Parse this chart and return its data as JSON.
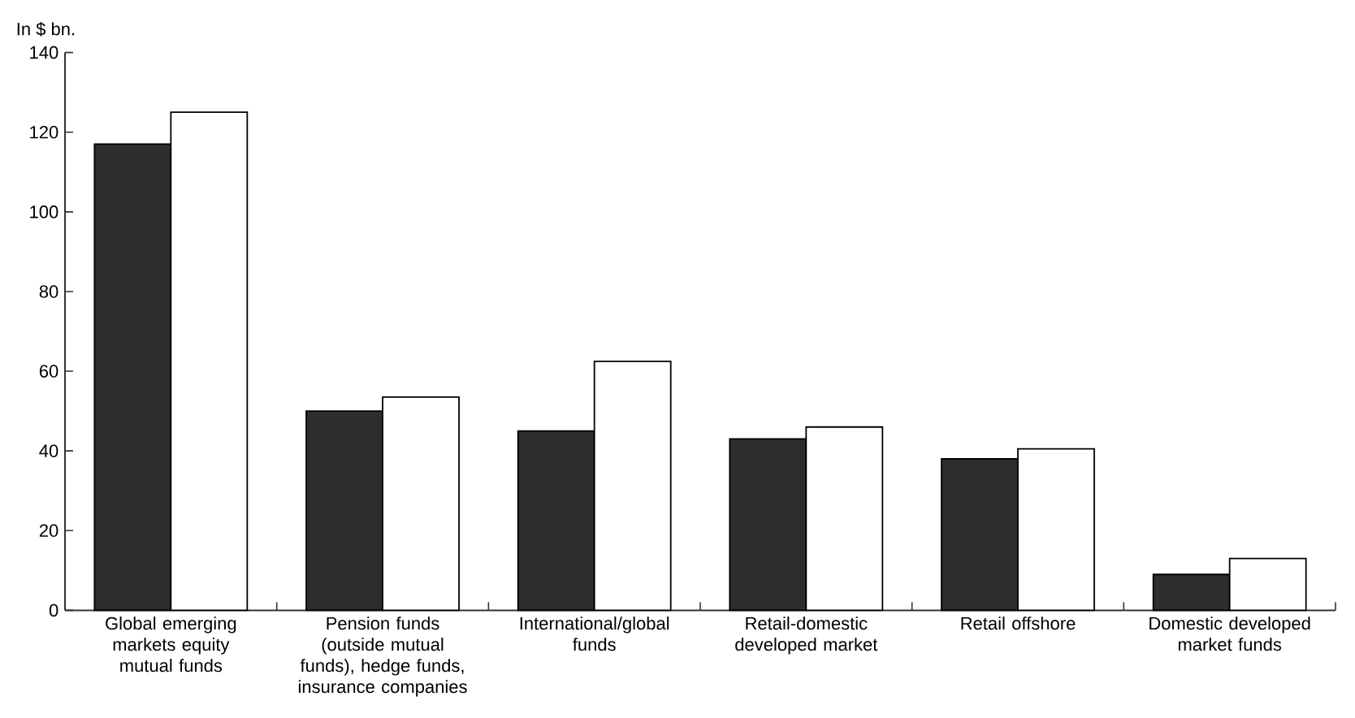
{
  "chart_data": {
    "type": "bar",
    "ylabel": "In $ bn.",
    "categories": [
      "Global emerging markets equity mutual funds",
      "Pension funds (outside mutual funds), hedge funds, insurance companies",
      "International/global funds",
      "Retail-domestic developed market",
      "Retail offshore",
      "Domestic developed market funds"
    ],
    "series": [
      {
        "color": "#2d2d2d",
        "values": [
          117,
          50,
          45,
          43,
          38,
          9
        ]
      },
      {
        "color": "#ffffff",
        "values": [
          125,
          53.5,
          62.5,
          46,
          40.5,
          13
        ]
      }
    ],
    "ylim": [
      0,
      140
    ],
    "yticks": [
      0,
      20,
      40,
      60,
      80,
      100,
      120,
      140
    ]
  }
}
